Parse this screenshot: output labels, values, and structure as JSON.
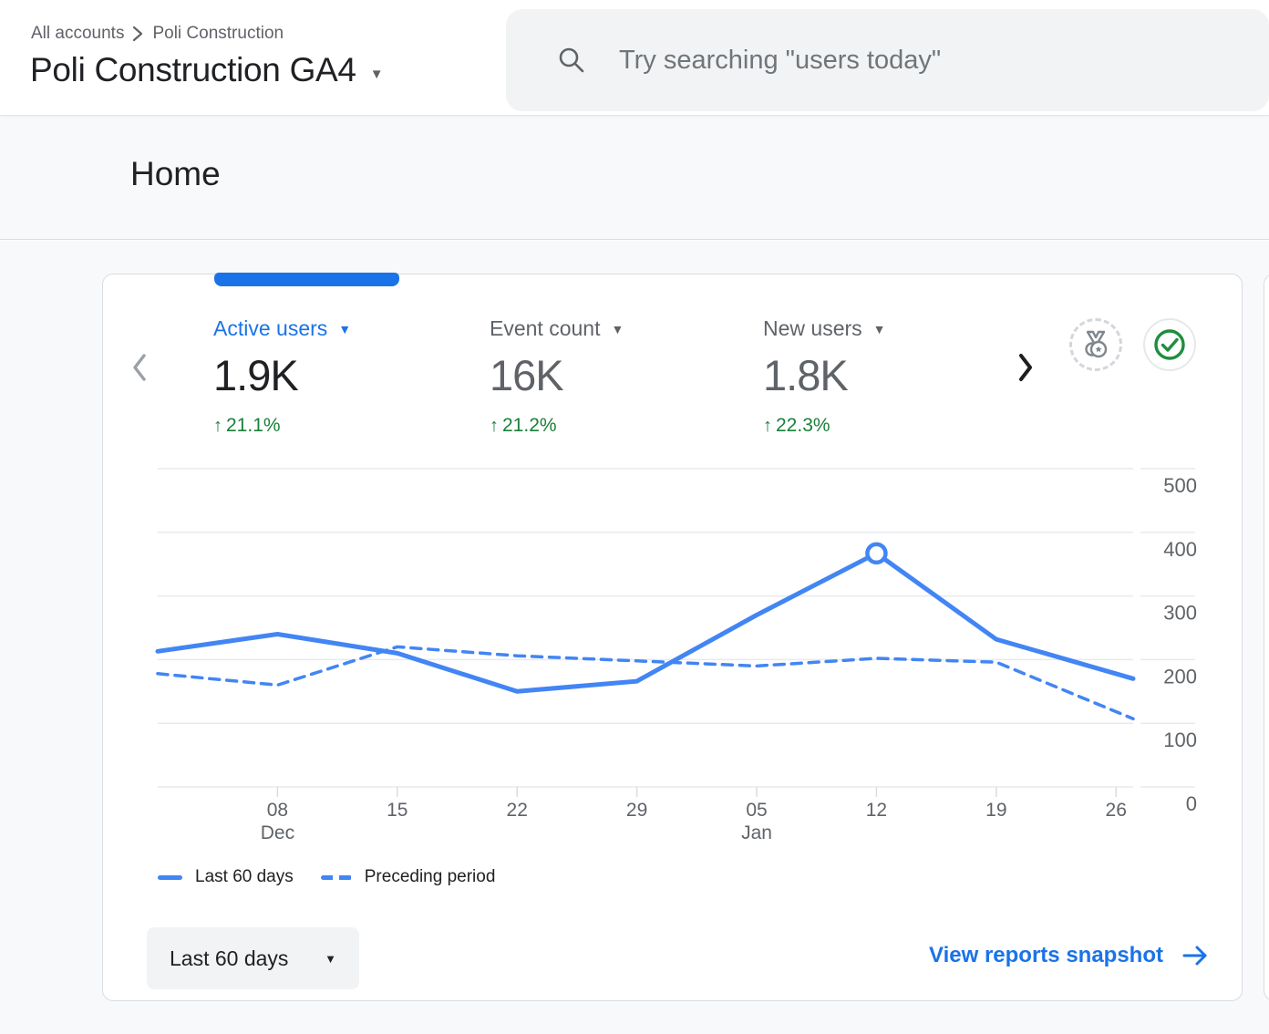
{
  "header": {
    "breadcrumb": {
      "root": "All accounts",
      "current": "Poli Construction"
    },
    "property_title": "Poli Construction GA4",
    "search_placeholder": "Try searching \"users today\""
  },
  "page": {
    "title": "Home"
  },
  "card": {
    "metrics": [
      {
        "label": "Active users",
        "value": "1.9K",
        "delta": "21.1%"
      },
      {
        "label": "Event count",
        "value": "16K",
        "delta": "21.2%"
      },
      {
        "label": "New users",
        "value": "1.8K",
        "delta": "22.3%"
      }
    ],
    "legend": [
      {
        "label": "Last 60 days",
        "style": "solid"
      },
      {
        "label": "Preceding period",
        "style": "dashed"
      }
    ],
    "date_range_label": "Last 60 days",
    "snapshot_link_label": "View reports snapshot"
  },
  "icons": {
    "caret_down": "▼",
    "up_arrow": "↑"
  },
  "colors": {
    "accent_blue": "#1a73e8",
    "line_blue": "#4285f4",
    "positive_green": "#188038",
    "text_dark": "#202124",
    "text_gray": "#5f6368",
    "card_border": "#dadce0",
    "surface_gray": "#f8f9fa",
    "control_gray": "#f1f3f4"
  },
  "chart_data": {
    "type": "line",
    "title": "Active users over last 60 days vs preceding period",
    "x_unit": "days since Dec 01",
    "x_max": 57,
    "ylim": [
      0,
      500
    ],
    "y_ticks": [
      0,
      100,
      200,
      300,
      400,
      500
    ],
    "x_ticks": [
      {
        "day": 7,
        "label": "08",
        "sub": "Dec"
      },
      {
        "day": 14,
        "label": "15"
      },
      {
        "day": 21,
        "label": "22"
      },
      {
        "day": 28,
        "label": "29"
      },
      {
        "day": 35,
        "label": "05",
        "sub": "Jan"
      },
      {
        "day": 42,
        "label": "12"
      },
      {
        "day": 49,
        "label": "19"
      },
      {
        "day": 56,
        "label": "26"
      }
    ],
    "series": [
      {
        "name": "Last 60 days",
        "style": "solid",
        "points": [
          [
            0,
            213
          ],
          [
            7,
            240
          ],
          [
            14,
            210
          ],
          [
            21,
            150
          ],
          [
            28,
            166
          ],
          [
            35,
            270
          ],
          [
            42,
            367
          ],
          [
            49,
            232
          ],
          [
            57,
            170
          ]
        ]
      },
      {
        "name": "Preceding period",
        "style": "dashed",
        "points": [
          [
            0,
            178
          ],
          [
            7,
            160
          ],
          [
            14,
            220
          ],
          [
            21,
            206
          ],
          [
            28,
            198
          ],
          [
            35,
            190
          ],
          [
            42,
            202
          ],
          [
            49,
            196
          ],
          [
            57,
            107
          ]
        ]
      }
    ],
    "highlight": {
      "series": "Last 60 days",
      "day": 42,
      "value": 367
    },
    "grid": "horizontal",
    "legend_position": "bottom-left",
    "colors": {
      "line": "#4285f4",
      "grid": "#e8eaed",
      "axis_text": "#5f6368",
      "tick": "#dadce0"
    }
  }
}
